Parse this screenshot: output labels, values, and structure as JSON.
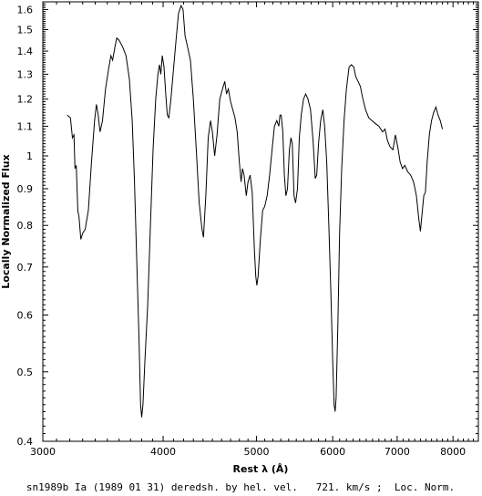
{
  "chart_data": {
    "type": "line",
    "title": "",
    "xlabel": "Rest λ (Å)",
    "ylabel": "Locally Normalized Flux",
    "caption": "sn1989b Ia (1989 01 31) deredsh. by hel. vel.   721. km/s ;  Loc. Norm.",
    "xscale": "log",
    "yscale": "log",
    "xlim": [
      3000,
      8500
    ],
    "ylim": [
      0.4,
      1.64
    ],
    "x_ticks": [
      3000,
      4000,
      5000,
      6000,
      7000,
      8000
    ],
    "y_ticks": [
      0.4,
      0.5,
      0.6,
      0.7,
      0.8,
      0.9,
      1,
      1.1,
      1.2,
      1.3,
      1.4,
      1.5,
      1.6
    ],
    "grid": false,
    "series": [
      {
        "name": "",
        "color": "#000000",
        "points": [
          [
            3180,
            1.14
          ],
          [
            3205,
            1.13
          ],
          [
            3220,
            1.06
          ],
          [
            3232,
            1.07
          ],
          [
            3240,
            0.96
          ],
          [
            3250,
            0.97
          ],
          [
            3262,
            0.84
          ],
          [
            3272,
            0.82
          ],
          [
            3285,
            0.765
          ],
          [
            3300,
            0.78
          ],
          [
            3320,
            0.79
          ],
          [
            3345,
            0.84
          ],
          [
            3370,
            0.98
          ],
          [
            3395,
            1.12
          ],
          [
            3410,
            1.18
          ],
          [
            3425,
            1.14
          ],
          [
            3440,
            1.08
          ],
          [
            3460,
            1.12
          ],
          [
            3485,
            1.24
          ],
          [
            3510,
            1.32
          ],
          [
            3530,
            1.38
          ],
          [
            3545,
            1.36
          ],
          [
            3565,
            1.42
          ],
          [
            3580,
            1.46
          ],
          [
            3600,
            1.45
          ],
          [
            3630,
            1.42
          ],
          [
            3660,
            1.38
          ],
          [
            3690,
            1.28
          ],
          [
            3715,
            1.12
          ],
          [
            3735,
            0.92
          ],
          [
            3755,
            0.72
          ],
          [
            3775,
            0.56
          ],
          [
            3790,
            0.45
          ],
          [
            3800,
            0.432
          ],
          [
            3812,
            0.45
          ],
          [
            3830,
            0.52
          ],
          [
            3855,
            0.62
          ],
          [
            3880,
            0.8
          ],
          [
            3905,
            1.02
          ],
          [
            3930,
            1.2
          ],
          [
            3950,
            1.3
          ],
          [
            3965,
            1.34
          ],
          [
            3978,
            1.3
          ],
          [
            3992,
            1.38
          ],
          [
            4008,
            1.33
          ],
          [
            4025,
            1.22
          ],
          [
            4040,
            1.14
          ],
          [
            4055,
            1.13
          ],
          [
            4075,
            1.2
          ],
          [
            4100,
            1.32
          ],
          [
            4125,
            1.45
          ],
          [
            4150,
            1.58
          ],
          [
            4175,
            1.62
          ],
          [
            4195,
            1.6
          ],
          [
            4215,
            1.47
          ],
          [
            4240,
            1.42
          ],
          [
            4270,
            1.36
          ],
          [
            4300,
            1.2
          ],
          [
            4330,
            1.02
          ],
          [
            4360,
            0.86
          ],
          [
            4390,
            0.79
          ],
          [
            4405,
            0.77
          ],
          [
            4430,
            0.88
          ],
          [
            4455,
            1.06
          ],
          [
            4480,
            1.12
          ],
          [
            4500,
            1.08
          ],
          [
            4525,
            1.0
          ],
          [
            4550,
            1.07
          ],
          [
            4580,
            1.2
          ],
          [
            4610,
            1.24
          ],
          [
            4635,
            1.27
          ],
          [
            4655,
            1.22
          ],
          [
            4675,
            1.24
          ],
          [
            4700,
            1.19
          ],
          [
            4725,
            1.16
          ],
          [
            4750,
            1.13
          ],
          [
            4775,
            1.08
          ],
          [
            4800,
            0.98
          ],
          [
            4820,
            0.92
          ],
          [
            4835,
            0.96
          ],
          [
            4855,
            0.94
          ],
          [
            4880,
            0.88
          ],
          [
            4900,
            0.92
          ],
          [
            4925,
            0.94
          ],
          [
            4950,
            0.89
          ],
          [
            4975,
            0.74
          ],
          [
            4992,
            0.68
          ],
          [
            5005,
            0.66
          ],
          [
            5020,
            0.68
          ],
          [
            5045,
            0.76
          ],
          [
            5075,
            0.84
          ],
          [
            5100,
            0.85
          ],
          [
            5130,
            0.88
          ],
          [
            5160,
            0.94
          ],
          [
            5190,
            1.02
          ],
          [
            5220,
            1.1
          ],
          [
            5250,
            1.12
          ],
          [
            5275,
            1.1
          ],
          [
            5290,
            1.14
          ],
          [
            5305,
            1.14
          ],
          [
            5325,
            1.08
          ],
          [
            5345,
            0.94
          ],
          [
            5365,
            0.88
          ],
          [
            5385,
            0.9
          ],
          [
            5410,
            1.02
          ],
          [
            5430,
            1.06
          ],
          [
            5448,
            1.04
          ],
          [
            5470,
            0.88
          ],
          [
            5490,
            0.86
          ],
          [
            5515,
            0.9
          ],
          [
            5540,
            1.06
          ],
          [
            5565,
            1.14
          ],
          [
            5595,
            1.2
          ],
          [
            5625,
            1.22
          ],
          [
            5655,
            1.2
          ],
          [
            5690,
            1.16
          ],
          [
            5725,
            1.05
          ],
          [
            5755,
            0.93
          ],
          [
            5775,
            0.94
          ],
          [
            5800,
            1.04
          ],
          [
            5830,
            1.12
          ],
          [
            5860,
            1.16
          ],
          [
            5885,
            1.1
          ],
          [
            5915,
            0.98
          ],
          [
            5945,
            0.8
          ],
          [
            5975,
            0.64
          ],
          [
            6000,
            0.52
          ],
          [
            6020,
            0.45
          ],
          [
            6035,
            0.44
          ],
          [
            6050,
            0.46
          ],
          [
            6075,
            0.58
          ],
          [
            6100,
            0.78
          ],
          [
            6130,
            0.96
          ],
          [
            6165,
            1.12
          ],
          [
            6200,
            1.24
          ],
          [
            6240,
            1.33
          ],
          [
            6275,
            1.34
          ],
          [
            6310,
            1.33
          ],
          [
            6340,
            1.29
          ],
          [
            6375,
            1.27
          ],
          [
            6410,
            1.25
          ],
          [
            6450,
            1.2
          ],
          [
            6490,
            1.16
          ],
          [
            6540,
            1.13
          ],
          [
            6590,
            1.12
          ],
          [
            6640,
            1.11
          ],
          [
            6700,
            1.1
          ],
          [
            6760,
            1.08
          ],
          [
            6800,
            1.09
          ],
          [
            6840,
            1.05
          ],
          [
            6880,
            1.03
          ],
          [
            6930,
            1.02
          ],
          [
            6970,
            1.07
          ],
          [
            7010,
            1.03
          ],
          [
            7050,
            0.98
          ],
          [
            7090,
            0.96
          ],
          [
            7130,
            0.97
          ],
          [
            7180,
            0.95
          ],
          [
            7230,
            0.94
          ],
          [
            7280,
            0.92
          ],
          [
            7330,
            0.88
          ],
          [
            7370,
            0.82
          ],
          [
            7400,
            0.785
          ],
          [
            7430,
            0.83
          ],
          [
            7460,
            0.88
          ],
          [
            7490,
            0.89
          ],
          [
            7520,
            0.98
          ],
          [
            7560,
            1.07
          ],
          [
            7600,
            1.12
          ],
          [
            7640,
            1.15
          ],
          [
            7680,
            1.17
          ],
          [
            7720,
            1.14
          ],
          [
            7760,
            1.12
          ],
          [
            7800,
            1.09
          ]
        ]
      }
    ]
  }
}
